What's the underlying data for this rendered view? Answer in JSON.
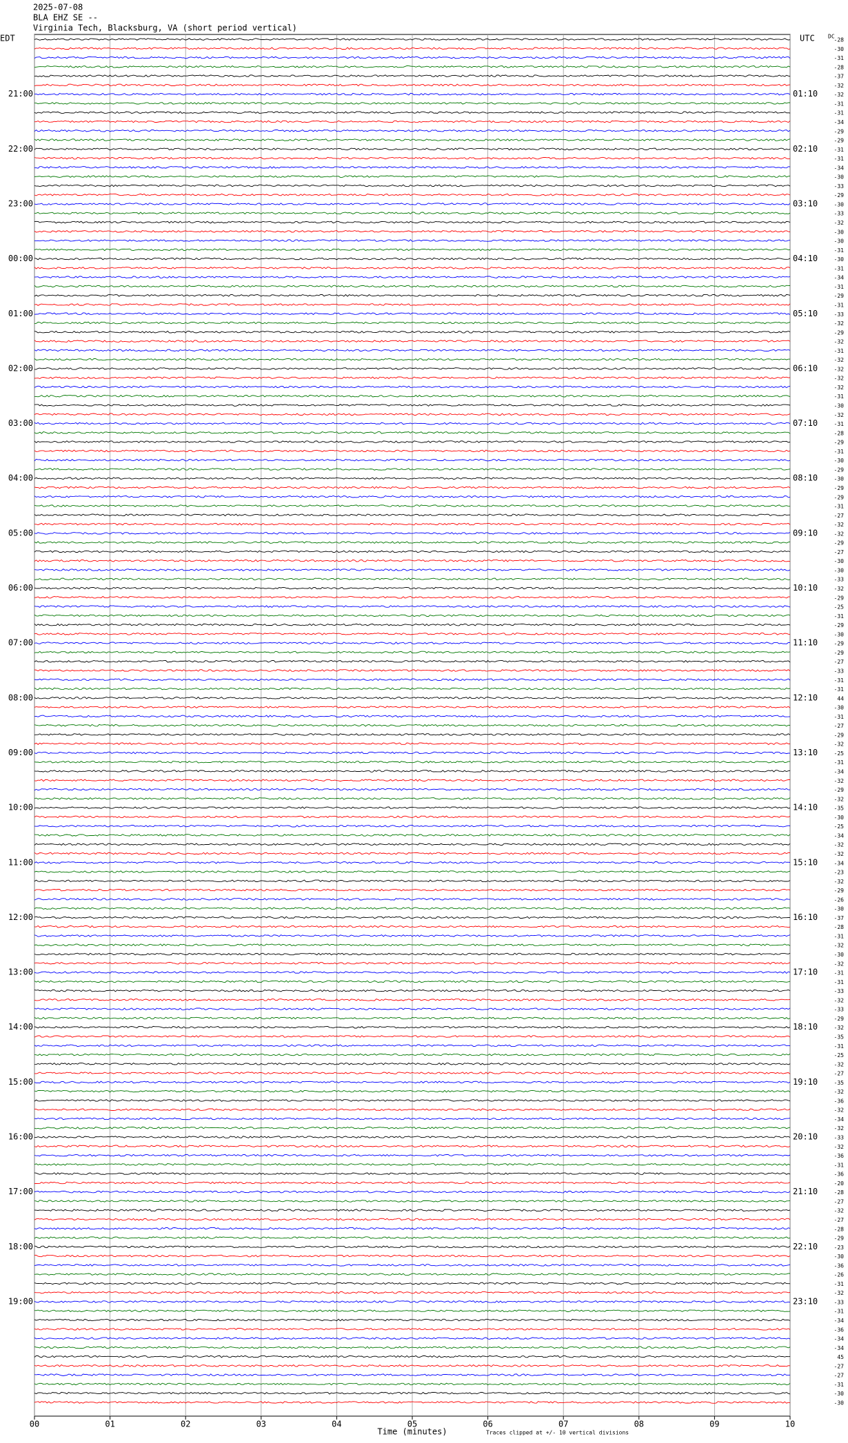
{
  "chart_data": {
    "type": "helicorder",
    "title_lines": [
      "2025-07-08",
      "BLA EHZ SE --",
      "Virginia Tech, Blacksburg, VA (short period vertical)"
    ],
    "left_axis_title": "EDT",
    "right_axis_title": "UTC",
    "dc_title": "DC",
    "left_labels": [
      "21:00",
      "22:00",
      "23:00",
      "00:00",
      "01:00",
      "02:00",
      "03:00",
      "04:00",
      "05:00",
      "06:00",
      "07:00",
      "08:00",
      "09:00",
      "10:00",
      "11:00",
      "12:00",
      "13:00",
      "14:00",
      "15:00",
      "16:00",
      "17:00",
      "18:00",
      "19:00"
    ],
    "right_labels": [
      "01:10",
      "02:10",
      "03:10",
      "04:10",
      "05:10",
      "06:10",
      "07:10",
      "08:10",
      "09:10",
      "10:10",
      "11:10",
      "12:10",
      "13:10",
      "14:10",
      "15:10",
      "16:10",
      "17:10",
      "18:10",
      "19:10",
      "20:10",
      "21:10",
      "22:10",
      "23:10"
    ],
    "dc_offsets": [
      -28,
      -30,
      -31,
      -28,
      -37,
      -32,
      -32,
      -31,
      -31,
      -34,
      -29,
      -29,
      -31,
      -31,
      -34,
      -30,
      -33,
      -29,
      -30,
      -33,
      -32,
      -30,
      -30,
      -31,
      -30,
      -31,
      -34,
      -31,
      -29,
      -31,
      -33,
      -32,
      -29,
      -32,
      -31,
      -32,
      -32,
      -32,
      -32,
      -31,
      -30,
      -32,
      -31,
      -28,
      -29,
      -31,
      -30,
      -29,
      -30,
      -29,
      -29,
      -31,
      -27,
      -32,
      -32,
      -29,
      -27,
      -30,
      -30,
      -33,
      -32,
      -29,
      -25,
      -31,
      -29,
      -30,
      -29,
      -29,
      -27,
      -33,
      -31,
      -31,
      44,
      -30,
      -31,
      -27,
      -29,
      -32,
      -25,
      -31,
      -34,
      -32,
      -29,
      -32,
      -35,
      -30,
      -25,
      -34,
      -32,
      -32,
      -34,
      -23,
      -32,
      -29,
      -26,
      -30,
      -37,
      -28,
      -31,
      -32,
      -30,
      -32,
      -31,
      -31,
      -33,
      -32,
      -33,
      -29,
      -32,
      -35,
      -31,
      -25,
      -32,
      -27,
      -35,
      -32,
      -36,
      -32,
      -34,
      -32,
      -33,
      -32,
      -36,
      -31,
      -36,
      -20,
      -28,
      -27,
      -32,
      -27,
      -28,
      -29,
      -23,
      -30,
      -36,
      -26,
      -31,
      -32,
      -33,
      -31,
      -34,
      -36,
      -34,
      -34,
      45,
      -27,
      -27,
      -31,
      -30,
      -30
    ],
    "xlabel": "Time (minutes)",
    "note": "Traces clipped at +/- 10 vertical divisions",
    "xlim": [
      0,
      10
    ],
    "xticks": [
      {
        "value": 0,
        "label": "00"
      },
      {
        "value": 1,
        "label": "01"
      },
      {
        "value": 2,
        "label": "02"
      },
      {
        "value": 3,
        "label": "03"
      },
      {
        "value": 4,
        "label": "04"
      },
      {
        "value": 5,
        "label": "05"
      },
      {
        "value": 6,
        "label": "06"
      },
      {
        "value": 7,
        "label": "07"
      },
      {
        "value": 8,
        "label": "08"
      },
      {
        "value": 9,
        "label": "09"
      },
      {
        "value": 10,
        "label": "10"
      }
    ],
    "trace_colors": [
      "#000000",
      "#ff0000",
      "#0000ff",
      "#007700"
    ],
    "grid": true
  }
}
